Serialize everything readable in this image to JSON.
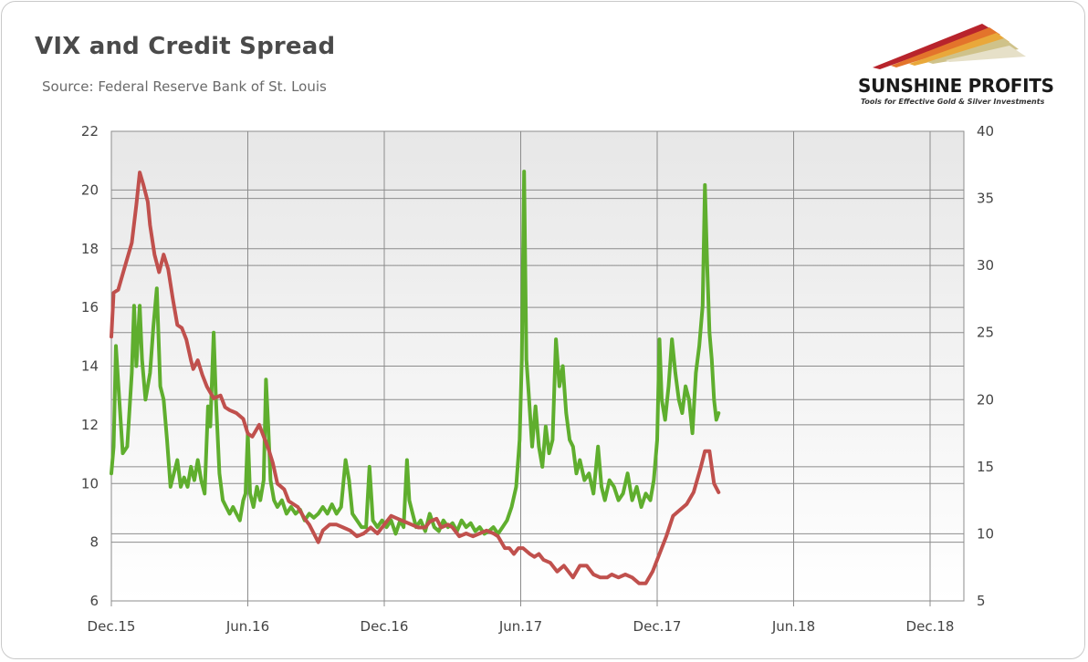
{
  "header": {
    "title": "VIX and Credit Spread",
    "subtitle": "Source: Federal Reserve Bank of St. Louis"
  },
  "logo": {
    "name": "SUNSHINE PROFITS",
    "tagline": "Tools for Effective Gold & Silver Investments"
  },
  "chart_data": {
    "type": "line",
    "title": "VIX and Credit Spread",
    "subtitle": "Source: Federal Reserve Bank of St. Louis",
    "x_tick_labels": [
      "Dec.15",
      "Jun.16",
      "Dec.16",
      "Jun.17",
      "Dec.17",
      "Jun.18",
      "Dec.18"
    ],
    "x_range": [
      "Dec.15",
      "Jan.19"
    ],
    "y_left": {
      "range": [
        6,
        22
      ],
      "ticks": [
        6,
        8,
        10,
        12,
        14,
        16,
        18,
        20,
        22
      ]
    },
    "y_right": {
      "range": [
        5,
        40
      ],
      "ticks": [
        5,
        10,
        15,
        20,
        25,
        30,
        35,
        40
      ]
    },
    "grid": true,
    "legend": "none",
    "series": [
      {
        "axis": "left",
        "color": "#c0504d",
        "points": [
          [
            0.0,
            15.0
          ],
          [
            0.1,
            16.5
          ],
          [
            0.3,
            16.6
          ],
          [
            0.6,
            17.4
          ],
          [
            0.9,
            18.2
          ],
          [
            1.1,
            19.5
          ],
          [
            1.25,
            20.6
          ],
          [
            1.4,
            20.2
          ],
          [
            1.6,
            19.6
          ],
          [
            1.7,
            18.8
          ],
          [
            1.9,
            17.8
          ],
          [
            2.1,
            17.2
          ],
          [
            2.3,
            17.8
          ],
          [
            2.5,
            17.3
          ],
          [
            2.7,
            16.3
          ],
          [
            2.9,
            15.4
          ],
          [
            3.1,
            15.3
          ],
          [
            3.3,
            14.9
          ],
          [
            3.5,
            14.2
          ],
          [
            3.6,
            13.9
          ],
          [
            3.8,
            14.2
          ],
          [
            4.0,
            13.7
          ],
          [
            4.2,
            13.3
          ],
          [
            4.5,
            12.9
          ],
          [
            4.8,
            13.0
          ],
          [
            5.0,
            12.6
          ],
          [
            5.2,
            12.5
          ],
          [
            5.5,
            12.4
          ],
          [
            5.8,
            12.2
          ],
          [
            6.0,
            11.7
          ],
          [
            6.2,
            11.6
          ],
          [
            6.5,
            12.0
          ],
          [
            6.7,
            11.6
          ],
          [
            6.9,
            11.2
          ],
          [
            7.1,
            10.7
          ],
          [
            7.3,
            10.0
          ],
          [
            7.6,
            9.8
          ],
          [
            7.8,
            9.4
          ],
          [
            8.0,
            9.3
          ],
          [
            8.2,
            9.2
          ],
          [
            8.5,
            8.8
          ],
          [
            8.7,
            8.6
          ],
          [
            8.9,
            8.3
          ],
          [
            9.1,
            8.0
          ],
          [
            9.3,
            8.4
          ],
          [
            9.6,
            8.6
          ],
          [
            9.9,
            8.6
          ],
          [
            10.2,
            8.5
          ],
          [
            10.5,
            8.4
          ],
          [
            10.8,
            8.2
          ],
          [
            11.1,
            8.3
          ],
          [
            11.4,
            8.5
          ],
          [
            11.7,
            8.3
          ],
          [
            12.0,
            8.6
          ],
          [
            12.3,
            8.9
          ],
          [
            12.6,
            8.8
          ],
          [
            12.9,
            8.7
          ],
          [
            13.2,
            8.6
          ],
          [
            13.5,
            8.5
          ],
          [
            13.8,
            8.5
          ],
          [
            14.0,
            8.7
          ],
          [
            14.3,
            8.8
          ],
          [
            14.5,
            8.5
          ],
          [
            14.8,
            8.6
          ],
          [
            15.0,
            8.5
          ],
          [
            15.3,
            8.2
          ],
          [
            15.6,
            8.3
          ],
          [
            15.9,
            8.2
          ],
          [
            16.2,
            8.3
          ],
          [
            16.5,
            8.4
          ],
          [
            16.8,
            8.3
          ],
          [
            17.0,
            8.2
          ],
          [
            17.3,
            7.8
          ],
          [
            17.5,
            7.8
          ],
          [
            17.7,
            7.6
          ],
          [
            17.9,
            7.8
          ],
          [
            18.1,
            7.8
          ],
          [
            18.4,
            7.6
          ],
          [
            18.6,
            7.5
          ],
          [
            18.8,
            7.6
          ],
          [
            19.0,
            7.4
          ],
          [
            19.3,
            7.3
          ],
          [
            19.6,
            7.0
          ],
          [
            19.9,
            7.2
          ],
          [
            20.1,
            7.0
          ],
          [
            20.3,
            6.8
          ],
          [
            20.6,
            7.2
          ],
          [
            20.9,
            7.2
          ],
          [
            21.2,
            6.9
          ],
          [
            21.5,
            6.8
          ],
          [
            21.8,
            6.8
          ],
          [
            22.0,
            6.9
          ],
          [
            22.3,
            6.8
          ],
          [
            22.6,
            6.9
          ],
          [
            22.9,
            6.8
          ],
          [
            23.2,
            6.6
          ],
          [
            23.5,
            6.6
          ],
          [
            23.8,
            7.0
          ],
          [
            24.1,
            7.6
          ],
          [
            24.4,
            8.2
          ],
          [
            24.7,
            8.9
          ],
          [
            25.0,
            9.1
          ],
          [
            25.3,
            9.3
          ],
          [
            25.6,
            9.7
          ],
          [
            25.9,
            10.5
          ],
          [
            26.1,
            11.1
          ],
          [
            26.3,
            11.1
          ],
          [
            26.5,
            10.0
          ],
          [
            26.7,
            9.7
          ]
        ]
      },
      {
        "axis": "right",
        "color": "#5fae2e",
        "points": [
          [
            0.0,
            14.5
          ],
          [
            0.1,
            16.5
          ],
          [
            0.2,
            24.0
          ],
          [
            0.35,
            20.0
          ],
          [
            0.5,
            16.0
          ],
          [
            0.7,
            16.5
          ],
          [
            0.9,
            22.0
          ],
          [
            1.0,
            27.0
          ],
          [
            1.1,
            22.5
          ],
          [
            1.25,
            27.0
          ],
          [
            1.35,
            23.0
          ],
          [
            1.5,
            20.0
          ],
          [
            1.7,
            22.0
          ],
          [
            1.85,
            25.5
          ],
          [
            2.0,
            28.3
          ],
          [
            2.15,
            21.0
          ],
          [
            2.3,
            20.0
          ],
          [
            2.45,
            17.0
          ],
          [
            2.6,
            13.5
          ],
          [
            2.75,
            14.5
          ],
          [
            2.9,
            15.5
          ],
          [
            3.05,
            13.5
          ],
          [
            3.2,
            14.2
          ],
          [
            3.35,
            13.5
          ],
          [
            3.5,
            15.0
          ],
          [
            3.65,
            14.0
          ],
          [
            3.8,
            15.5
          ],
          [
            3.95,
            14.0
          ],
          [
            4.1,
            13.0
          ],
          [
            4.25,
            19.5
          ],
          [
            4.35,
            18.0
          ],
          [
            4.5,
            25.0
          ],
          [
            4.6,
            20.0
          ],
          [
            4.75,
            14.5
          ],
          [
            4.9,
            12.5
          ],
          [
            5.05,
            12.0
          ],
          [
            5.2,
            11.5
          ],
          [
            5.35,
            12.0
          ],
          [
            5.5,
            11.5
          ],
          [
            5.65,
            11.0
          ],
          [
            5.8,
            12.5
          ],
          [
            5.9,
            13.0
          ],
          [
            6.0,
            17.5
          ],
          [
            6.1,
            13.0
          ],
          [
            6.25,
            12.0
          ],
          [
            6.4,
            13.5
          ],
          [
            6.55,
            12.5
          ],
          [
            6.7,
            14.0
          ],
          [
            6.8,
            21.5
          ],
          [
            6.9,
            18.0
          ],
          [
            7.0,
            14.0
          ],
          [
            7.15,
            12.5
          ],
          [
            7.3,
            12.0
          ],
          [
            7.5,
            12.5
          ],
          [
            7.7,
            11.5
          ],
          [
            7.9,
            12.0
          ],
          [
            8.1,
            11.5
          ],
          [
            8.3,
            11.8
          ],
          [
            8.5,
            11.0
          ],
          [
            8.7,
            11.5
          ],
          [
            8.9,
            11.2
          ],
          [
            9.1,
            11.5
          ],
          [
            9.3,
            12.0
          ],
          [
            9.5,
            11.5
          ],
          [
            9.7,
            12.2
          ],
          [
            9.9,
            11.5
          ],
          [
            10.1,
            12.0
          ],
          [
            10.3,
            15.5
          ],
          [
            10.45,
            14.0
          ],
          [
            10.6,
            11.5
          ],
          [
            10.8,
            11.0
          ],
          [
            11.0,
            10.5
          ],
          [
            11.2,
            10.5
          ],
          [
            11.35,
            15.0
          ],
          [
            11.5,
            11.0
          ],
          [
            11.7,
            10.5
          ],
          [
            11.9,
            11.0
          ],
          [
            12.1,
            10.5
          ],
          [
            12.3,
            11.0
          ],
          [
            12.5,
            10.0
          ],
          [
            12.7,
            11.0
          ],
          [
            12.85,
            10.5
          ],
          [
            13.0,
            15.5
          ],
          [
            13.1,
            12.5
          ],
          [
            13.25,
            11.5
          ],
          [
            13.4,
            10.5
          ],
          [
            13.6,
            11.0
          ],
          [
            13.8,
            10.2
          ],
          [
            14.0,
            11.5
          ],
          [
            14.2,
            10.5
          ],
          [
            14.4,
            10.2
          ],
          [
            14.6,
            11.0
          ],
          [
            14.8,
            10.5
          ],
          [
            15.0,
            10.8
          ],
          [
            15.2,
            10.2
          ],
          [
            15.4,
            11.0
          ],
          [
            15.6,
            10.5
          ],
          [
            15.8,
            10.8
          ],
          [
            16.0,
            10.2
          ],
          [
            16.2,
            10.5
          ],
          [
            16.4,
            10.0
          ],
          [
            16.6,
            10.2
          ],
          [
            16.8,
            10.5
          ],
          [
            17.0,
            10.0
          ],
          [
            17.2,
            10.5
          ],
          [
            17.4,
            11.0
          ],
          [
            17.6,
            12.0
          ],
          [
            17.8,
            13.5
          ],
          [
            17.95,
            17.0
          ],
          [
            18.05,
            23.0
          ],
          [
            18.15,
            37.0
          ],
          [
            18.25,
            23.0
          ],
          [
            18.35,
            20.5
          ],
          [
            18.5,
            16.5
          ],
          [
            18.65,
            19.5
          ],
          [
            18.8,
            16.5
          ],
          [
            18.95,
            15.0
          ],
          [
            19.1,
            18.0
          ],
          [
            19.25,
            16.0
          ],
          [
            19.4,
            17.0
          ],
          [
            19.55,
            24.5
          ],
          [
            19.7,
            21.0
          ],
          [
            19.85,
            22.5
          ],
          [
            20.0,
            19.0
          ],
          [
            20.15,
            17.0
          ],
          [
            20.3,
            16.5
          ],
          [
            20.45,
            14.5
          ],
          [
            20.6,
            15.5
          ],
          [
            20.8,
            14.0
          ],
          [
            21.0,
            14.5
          ],
          [
            21.2,
            13.0
          ],
          [
            21.4,
            16.5
          ],
          [
            21.55,
            13.5
          ],
          [
            21.7,
            12.5
          ],
          [
            21.9,
            14.0
          ],
          [
            22.1,
            13.5
          ],
          [
            22.3,
            12.5
          ],
          [
            22.5,
            13.0
          ],
          [
            22.7,
            14.5
          ],
          [
            22.9,
            12.5
          ],
          [
            23.1,
            13.5
          ],
          [
            23.3,
            12.0
          ],
          [
            23.5,
            13.0
          ],
          [
            23.7,
            12.5
          ],
          [
            23.85,
            14.0
          ],
          [
            24.0,
            17.0
          ],
          [
            24.1,
            24.5
          ],
          [
            24.2,
            20.0
          ],
          [
            24.35,
            18.5
          ],
          [
            24.5,
            21.0
          ],
          [
            24.65,
            24.5
          ],
          [
            24.8,
            22.0
          ],
          [
            24.95,
            20.0
          ],
          [
            25.1,
            19.0
          ],
          [
            25.25,
            21.0
          ],
          [
            25.4,
            20.0
          ],
          [
            25.55,
            17.5
          ],
          [
            25.7,
            22.0
          ],
          [
            25.85,
            24.0
          ],
          [
            26.0,
            27.0
          ],
          [
            26.1,
            36.0
          ],
          [
            26.2,
            30.0
          ],
          [
            26.3,
            25.0
          ],
          [
            26.4,
            23.0
          ],
          [
            26.5,
            20.0
          ],
          [
            26.6,
            18.5
          ],
          [
            26.7,
            19.0
          ]
        ]
      }
    ]
  }
}
